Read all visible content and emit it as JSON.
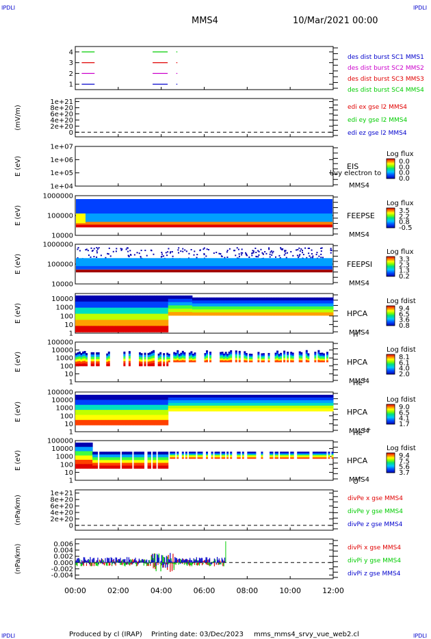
{
  "header": {
    "corner_tl": "IPDLI",
    "corner_tr": "IPDLI",
    "corner_bl": "IPDLI",
    "corner_br": "IPDLI",
    "spacecraft": "MMS4",
    "datetime": "10/Mar/2021 00:00"
  },
  "footer": {
    "produced_by": "Produced by cl (IRAP)",
    "printing_date": "Printing date: 03/Dec/2023",
    "script_name": "mms_mms4_srvy_vue_web2.cl"
  },
  "colors": {
    "red": "#e00000",
    "green": "#00cc00",
    "blue": "#0000cc",
    "magenta": "#cc00cc"
  },
  "chart_data": [
    {
      "type": "line",
      "panel": "burst",
      "ytick_labels": [
        "4",
        "3",
        "2",
        "1"
      ],
      "yticks": [
        4,
        3,
        2,
        1
      ],
      "ylim": [
        0.5,
        4.5
      ],
      "legend": [
        {
          "text": "des dist burst SC1 MMS1",
          "color": "#0000cc"
        },
        {
          "text": "des dist burst SC2 MMS2",
          "color": "#cc00cc"
        },
        {
          "text": "des dist burst SC3 MMS3",
          "color": "#e00000"
        },
        {
          "text": "des dist burst SC4 MMS4",
          "color": "#00cc00"
        }
      ],
      "segments": [
        {
          "y": 4,
          "x0": 0.3,
          "x1": 0.9,
          "color": "#00cc00"
        },
        {
          "y": 4,
          "x0": 3.6,
          "x1": 4.3,
          "color": "#00cc00"
        },
        {
          "y": 4,
          "x0": 4.7,
          "x1": 4.75,
          "color": "#00cc00"
        },
        {
          "y": 3,
          "x0": 0.3,
          "x1": 0.9,
          "color": "#e00000"
        },
        {
          "y": 3,
          "x0": 3.6,
          "x1": 4.3,
          "color": "#e00000"
        },
        {
          "y": 3,
          "x0": 4.7,
          "x1": 4.75,
          "color": "#e00000"
        },
        {
          "y": 2,
          "x0": 0.3,
          "x1": 0.9,
          "color": "#cc00cc"
        },
        {
          "y": 2,
          "x0": 3.6,
          "x1": 4.3,
          "color": "#cc00cc"
        },
        {
          "y": 2,
          "x0": 4.7,
          "x1": 4.75,
          "color": "#cc00cc"
        },
        {
          "y": 1,
          "x0": 0.3,
          "x1": 0.9,
          "color": "#0000cc"
        },
        {
          "y": 1,
          "x0": 3.6,
          "x1": 4.3,
          "color": "#0000cc"
        },
        {
          "y": 1,
          "x0": 4.7,
          "x1": 4.75,
          "color": "#0000cc"
        }
      ]
    },
    {
      "type": "line",
      "panel": "edi",
      "ylabel": "(mV/m)",
      "ytick_labels": [
        "1e+21",
        "8e+20",
        "6e+20",
        "4e+20",
        "2e+20",
        "0"
      ],
      "yticks": [
        1e+21,
        8e+20,
        6e+20,
        4e+20,
        2e+20,
        0
      ],
      "ylim": [
        -1.5e+20,
        1.1e+21
      ],
      "zero_line": true,
      "legend": [
        {
          "text": "edi ex gse l2 MMS4",
          "color": "#e00000"
        },
        {
          "text": "edi ey gse l2 MMS4",
          "color": "#00cc00"
        },
        {
          "text": "edi ez gse l2 MMS4",
          "color": "#0000cc"
        }
      ]
    },
    {
      "type": "heatmap",
      "panel": "eis",
      "ylabel": "E (eV)",
      "ytick_labels": [
        "1e+07",
        "1e+06",
        "1e+05",
        "1e+04"
      ],
      "ylog": true,
      "ylim": [
        10000,
        10000000
      ],
      "instrument": [
        "EIS",
        "MMS4"
      ],
      "extra_label": "l/vy electron to",
      "colorbar": {
        "title": "Log flux",
        "ticks": [
          "0.0",
          "0.0",
          "0.0",
          "0.0"
        ]
      }
    },
    {
      "type": "heatmap",
      "panel": "feeps-e",
      "ylabel": "E (eV)",
      "ytick_labels": [
        "1000000",
        "100000",
        "10000"
      ],
      "ylog": true,
      "ylim": [
        10000,
        1000000
      ],
      "instrument": [
        "FEEPSE",
        "MMS4"
      ],
      "colorbar": {
        "title": "Log flux",
        "ticks": [
          "3.5",
          "2.2",
          "0.8",
          "-0.5"
        ]
      }
    },
    {
      "type": "heatmap",
      "panel": "feeps-i",
      "ylabel": "E (eV)",
      "ytick_labels": [
        "1000000",
        "100000",
        "10000"
      ],
      "ylog": true,
      "ylim": [
        10000,
        1000000
      ],
      "instrument": [
        "FEEPSI",
        "MMS4"
      ],
      "colorbar": {
        "title": "Log flux",
        "ticks": [
          "3.3",
          "2.3",
          "1.3",
          "0.2"
        ]
      }
    },
    {
      "type": "heatmap",
      "panel": "hpca-h",
      "ylabel": "E (eV)",
      "ytick_labels": [
        "10000",
        "1000",
        "100",
        "10",
        "1"
      ],
      "ylog": true,
      "ylim": [
        1,
        40000
      ],
      "instrument": [
        "HPCA",
        "MMS4"
      ],
      "species": "H",
      "species_sup": "+",
      "colorbar": {
        "title": "Log fdist",
        "ticks": [
          "9.4",
          "6.5",
          "3.6",
          "0.8"
        ]
      }
    },
    {
      "type": "heatmap",
      "panel": "hpca-he",
      "ylabel": "E (eV)",
      "ytick_labels": [
        "100000",
        "10000",
        "1000",
        "100",
        "10",
        "1"
      ],
      "ylog": true,
      "ylim": [
        1,
        100000
      ],
      "instrument": [
        "HPCA",
        "MMS4"
      ],
      "species": "He",
      "species_sup": "+",
      "colorbar": {
        "title": "Log fdist",
        "ticks": [
          "8.1",
          "6.1",
          "4.0",
          "2.0"
        ]
      }
    },
    {
      "type": "heatmap",
      "panel": "hpca-hepp",
      "ylabel": "E (eV)",
      "ytick_labels": [
        "100000",
        "10000",
        "1000",
        "100",
        "10",
        "1"
      ],
      "ylog": true,
      "ylim": [
        1,
        100000
      ],
      "instrument": [
        "HPCA",
        "MMS4"
      ],
      "species": "He",
      "species_sup": "++",
      "colorbar": {
        "title": "Log fdist",
        "ticks": [
          "9.0",
          "6.5",
          "4.1",
          "1.7"
        ]
      }
    },
    {
      "type": "heatmap",
      "panel": "hpca-o",
      "ylabel": "E (eV)",
      "ytick_labels": [
        "100000",
        "10000",
        "1000",
        "100",
        "10",
        "1"
      ],
      "ylog": true,
      "ylim": [
        1,
        100000
      ],
      "instrument": [
        "HPCA",
        "MMS4"
      ],
      "species": "O",
      "species_sup": "+",
      "colorbar": {
        "title": "Log fdist",
        "ticks": [
          "9.4",
          "7.5",
          "5.6",
          "3.7"
        ]
      }
    },
    {
      "type": "line",
      "panel": "divpe",
      "ylabel": "(nPa/km)",
      "ytick_labels": [
        "1e+21",
        "8e+20",
        "6e+20",
        "4e+20",
        "2e+20",
        "0"
      ],
      "yticks": [
        1e+21,
        8e+20,
        6e+20,
        4e+20,
        2e+20,
        0
      ],
      "ylim": [
        -1.5e+20,
        1.1e+21
      ],
      "zero_line": true,
      "legend": [
        {
          "text": "divPe x gse MMS4",
          "color": "#e00000"
        },
        {
          "text": "divPe y gse MMS4",
          "color": "#00cc00"
        },
        {
          "text": "divPe z gse MMS4",
          "color": "#0000cc"
        }
      ]
    },
    {
      "type": "line",
      "panel": "divpi",
      "ylabel": "(nPa/km)",
      "ytick_labels": [
        "0.006",
        "0.004",
        "0.002",
        "0.000",
        "-0.002",
        "-0.004"
      ],
      "yticks": [
        0.006,
        0.004,
        0.002,
        0.0,
        -0.002,
        -0.004
      ],
      "ylim": [
        -0.0052,
        0.0075
      ],
      "zero_line": true,
      "data_end_hour": 7.0,
      "legend": [
        {
          "text": "divPi x gse MMS4",
          "color": "#e00000"
        },
        {
          "text": "divPi y gse MMS4",
          "color": "#00cc00"
        },
        {
          "text": "divPi z gse MMS4",
          "color": "#0000cc"
        }
      ]
    }
  ],
  "xaxis": {
    "tick_labels": [
      "00:00",
      "02:00",
      "04:00",
      "06:00",
      "08:00",
      "10:00",
      "12:00"
    ],
    "xlim": [
      0,
      12
    ]
  }
}
